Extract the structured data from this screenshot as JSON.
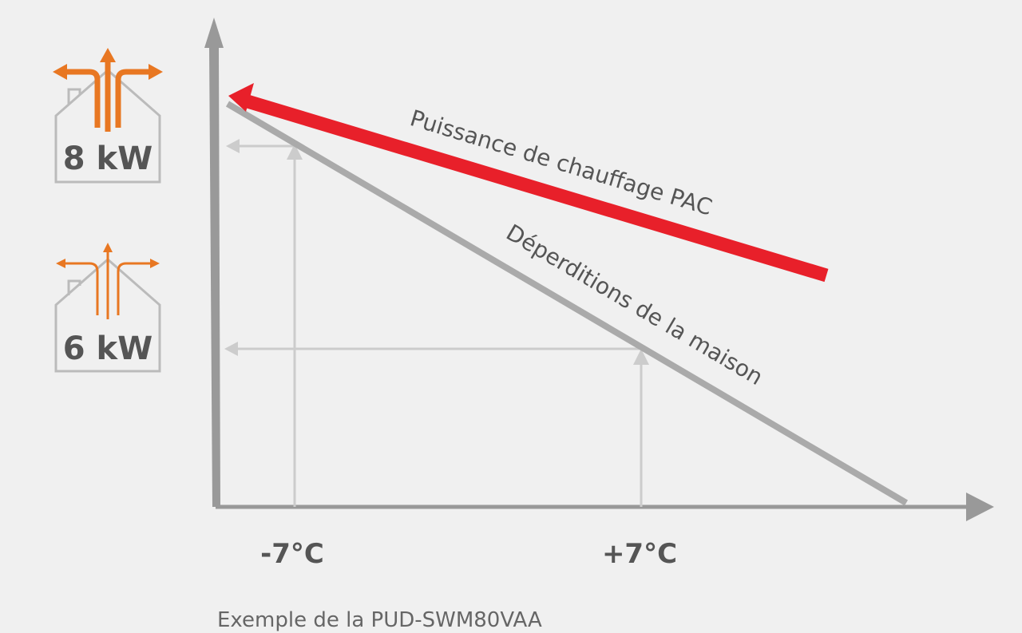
{
  "icons": [
    {
      "label": "8 kW"
    },
    {
      "label": "6 kW"
    }
  ],
  "x_labels": [
    "-7°C",
    "+7°C"
  ],
  "curves": {
    "heating": "Puissance de chauffage PAC",
    "losses": "Déperditions de la maison"
  },
  "caption": "Exemple de la PUD-SWM80VAA"
}
